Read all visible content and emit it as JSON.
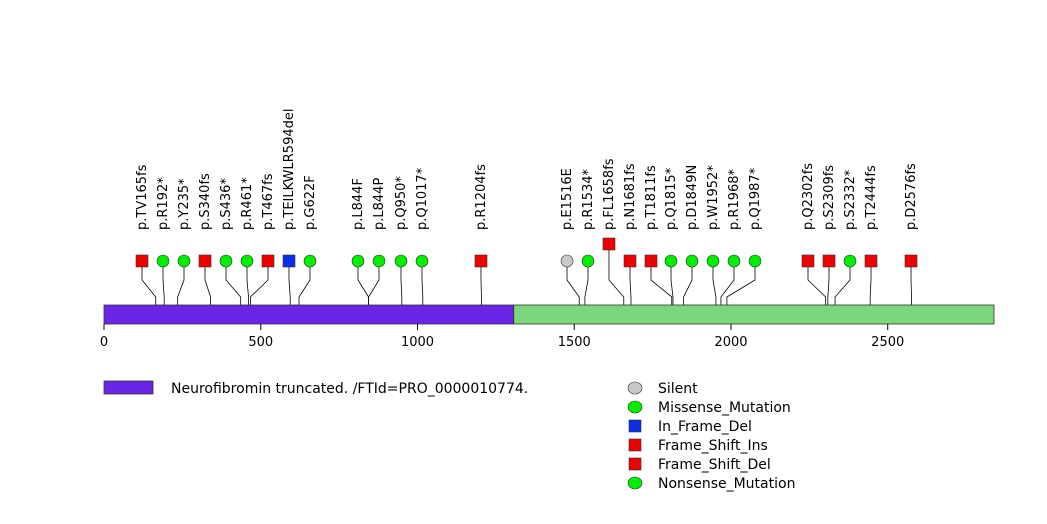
{
  "chart_data": {
    "type": "lollipop",
    "x_range": [
      0,
      2839
    ],
    "ticks": [
      {
        "value": 0,
        "label": "0"
      },
      {
        "value": 500,
        "label": "500"
      },
      {
        "value": 1000,
        "label": "1000"
      },
      {
        "value": 1500,
        "label": "1500"
      },
      {
        "value": 2000,
        "label": "2000"
      },
      {
        "value": 2500,
        "label": "2500"
      }
    ],
    "domains": [
      {
        "start": 0,
        "end": 1307,
        "color": "#6b25e6",
        "label": "Neurofibromin truncated. /FTId=PRO_0000010774."
      },
      {
        "start": 1307,
        "end": 2839,
        "color": "#7cd67c"
      }
    ],
    "mutations": [
      {
        "label": "p.TV165fs",
        "pos": 165,
        "type": "Frame_Shift_Del"
      },
      {
        "label": "p.R192*",
        "pos": 192,
        "type": "Nonsense_Mutation"
      },
      {
        "label": "p.Y235*",
        "pos": 235,
        "type": "Nonsense_Mutation"
      },
      {
        "label": "p.S340fs",
        "pos": 340,
        "type": "Frame_Shift_Del"
      },
      {
        "label": "p.S436*",
        "pos": 436,
        "type": "Nonsense_Mutation"
      },
      {
        "label": "p.R461*",
        "pos": 461,
        "type": "Nonsense_Mutation"
      },
      {
        "label": "p.T467fs",
        "pos": 467,
        "type": "Frame_Shift_Del"
      },
      {
        "label": "p.TEILKWLR594del",
        "pos": 594,
        "type": "In_Frame_Del"
      },
      {
        "label": "p.G622F",
        "pos": 622,
        "type": "Missense_Mutation"
      },
      {
        "label": "p.L844F",
        "pos": 844,
        "type": "Missense_Mutation"
      },
      {
        "label": "p.L844P",
        "pos": 844,
        "type": "Missense_Mutation"
      },
      {
        "label": "p.Q950*",
        "pos": 950,
        "type": "Nonsense_Mutation"
      },
      {
        "label": "p.Q1017*",
        "pos": 1017,
        "type": "Nonsense_Mutation"
      },
      {
        "label": "p.R1204fs",
        "pos": 1204,
        "type": "Frame_Shift_Del"
      },
      {
        "label": "p.E1516E",
        "pos": 1516,
        "type": "Silent"
      },
      {
        "label": "p.R1534*",
        "pos": 1534,
        "type": "Nonsense_Mutation"
      },
      {
        "label": "p.FL1658fs",
        "pos": 1658,
        "type": "Frame_Shift_Del",
        "stack": 2
      },
      {
        "label": "p.N1681fs",
        "pos": 1681,
        "type": "Frame_Shift_Del"
      },
      {
        "label": "p.T1811fs",
        "pos": 1811,
        "type": "Frame_Shift_Del"
      },
      {
        "label": "p.Q1815*",
        "pos": 1815,
        "type": "Nonsense_Mutation"
      },
      {
        "label": "p.D1849N",
        "pos": 1849,
        "type": "Missense_Mutation"
      },
      {
        "label": "p.W1952*",
        "pos": 1952,
        "type": "Nonsense_Mutation"
      },
      {
        "label": "p.R1968*",
        "pos": 1968,
        "type": "Nonsense_Mutation"
      },
      {
        "label": "p.Q1987*",
        "pos": 1987,
        "type": "Nonsense_Mutation"
      },
      {
        "label": "p.Q2302fs",
        "pos": 2302,
        "type": "Frame_Shift_Del"
      },
      {
        "label": "p.S2309fs",
        "pos": 2309,
        "type": "Frame_Shift_Del"
      },
      {
        "label": "p.S2332*",
        "pos": 2332,
        "type": "Nonsense_Mutation"
      },
      {
        "label": "p.T2444fs",
        "pos": 2444,
        "type": "Frame_Shift_Del"
      },
      {
        "label": "p.D2576fs",
        "pos": 2576,
        "type": "Frame_Shift_Del"
      }
    ],
    "legend_domains": [
      {
        "label": "Neurofibromin truncated. /FTId=PRO_0000010774.",
        "color": "#6b25e6"
      }
    ],
    "legend_types": [
      {
        "label": "Silent",
        "shape": "circle",
        "color": "#c8c8c8"
      },
      {
        "label": "Missense_Mutation",
        "shape": "circle",
        "color": "#00ee00"
      },
      {
        "label": "In_Frame_Del",
        "shape": "square",
        "color": "#0a2ee6"
      },
      {
        "label": "Frame_Shift_Ins",
        "shape": "square",
        "color": "#ee0000"
      },
      {
        "label": "Frame_Shift_Del",
        "shape": "square",
        "color": "#ee0000"
      },
      {
        "label": "Nonsense_Mutation",
        "shape": "circle",
        "color": "#00ee00"
      }
    ]
  }
}
